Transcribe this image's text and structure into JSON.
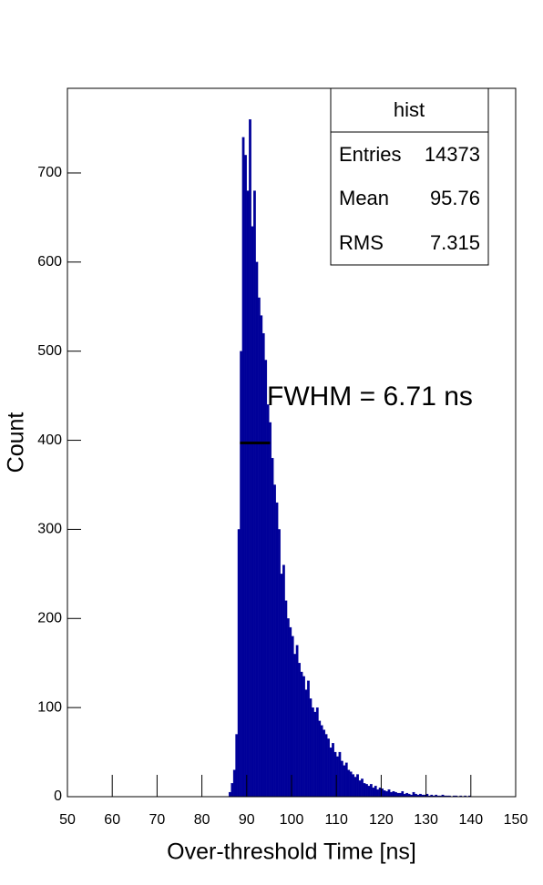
{
  "chart_data": {
    "type": "histogram",
    "bins": [
      50,
      50.5,
      51,
      51.5,
      52,
      52.5,
      53,
      53.5,
      54,
      54.5,
      55,
      55.5,
      56,
      56.5,
      57,
      57.5,
      58,
      58.5,
      59,
      59.5,
      60,
      60.5,
      61,
      61.5,
      62,
      62.5,
      63,
      63.5,
      64,
      64.5,
      65,
      65.5,
      66,
      66.5,
      67,
      67.5,
      68,
      68.5,
      69,
      69.5,
      70,
      70.5,
      71,
      71.5,
      72,
      72.5,
      73,
      73.5,
      74,
      74.5,
      75,
      75.5,
      76,
      76.5,
      77,
      77.5,
      78,
      78.5,
      79,
      79.5,
      80,
      80.5,
      81,
      81.5,
      82,
      82.5,
      83,
      83.5,
      84,
      84.5,
      85,
      85.5,
      86,
      86.5,
      87,
      87.5,
      88,
      88.5,
      89,
      89.5,
      90,
      90.5,
      91,
      91.5,
      92,
      92.5,
      93,
      93.5,
      94,
      94.5,
      95,
      95.5,
      96,
      96.5,
      97,
      97.5,
      98,
      98.5,
      99,
      99.5,
      100,
      100.5,
      101,
      101.5,
      102,
      102.5,
      103,
      103.5,
      104,
      104.5,
      105,
      105.5,
      106,
      106.5,
      107,
      107.5,
      108,
      108.5,
      109,
      109.5,
      110,
      110.5,
      111,
      111.5,
      112,
      112.5,
      113,
      113.5,
      114,
      114.5,
      115,
      115.5,
      116,
      116.5,
      117,
      117.5,
      118,
      118.5,
      119,
      119.5,
      120,
      120.5,
      121,
      121.5,
      122,
      122.5,
      123,
      123.5,
      124,
      124.5,
      125,
      125.5,
      126,
      126.5,
      127,
      127.5,
      128,
      128.5,
      129,
      129.5,
      130,
      130.5,
      131,
      131.5,
      132,
      132.5,
      133,
      133.5,
      134,
      134.5,
      135,
      135.5,
      136,
      136.5,
      137,
      137.5,
      138,
      138.5,
      139,
      139.5,
      140,
      140.5,
      141,
      141.5,
      142,
      142.5,
      143,
      143.5,
      144,
      144.5,
      145,
      145.5,
      146,
      146.5,
      147,
      147.5,
      148,
      148.5,
      149,
      149.5,
      150
    ],
    "values": [
      0,
      0,
      0,
      0,
      0,
      0,
      0,
      0,
      0,
      0,
      0,
      0,
      0,
      0,
      0,
      0,
      0,
      0,
      0,
      0,
      0,
      0,
      0,
      0,
      0,
      0,
      0,
      0,
      0,
      0,
      0,
      0,
      0,
      0,
      0,
      0,
      0,
      0,
      0,
      0,
      0,
      0,
      0,
      0,
      0,
      0,
      0,
      0,
      0,
      0,
      0,
      0,
      0,
      0,
      0,
      0,
      0,
      0,
      0,
      0,
      0,
      0,
      0,
      0,
      0,
      0,
      0,
      0,
      0,
      0,
      0,
      0,
      5,
      15,
      30,
      70,
      300,
      500,
      740,
      720,
      680,
      760,
      640,
      680,
      600,
      560,
      540,
      520,
      490,
      440,
      420,
      380,
      350,
      330,
      300,
      250,
      260,
      220,
      200,
      190,
      180,
      160,
      170,
      150,
      140,
      135,
      120,
      130,
      110,
      100,
      95,
      100,
      85,
      80,
      75,
      70,
      65,
      55,
      60,
      50,
      45,
      50,
      40,
      35,
      38,
      30,
      28,
      25,
      22,
      25,
      18,
      20,
      15,
      14,
      12,
      14,
      10,
      12,
      8,
      10,
      9,
      7,
      6,
      8,
      5,
      6,
      5,
      4,
      4,
      6,
      3,
      4,
      3,
      2,
      5,
      3,
      2,
      3,
      2,
      2,
      3,
      1,
      2,
      1,
      2,
      1,
      1,
      2,
      1,
      1,
      1,
      0,
      1,
      1,
      0,
      1,
      0,
      1,
      0,
      1,
      0,
      0,
      0,
      0,
      0,
      0,
      0,
      0,
      0,
      0,
      0,
      0,
      0,
      0,
      0,
      0,
      0,
      0,
      0,
      0
    ],
    "color": "#000099",
    "x_label": "Over-threshold Time [ns]",
    "y_label": "Count",
    "xlim": [
      50,
      150
    ],
    "xticks": [
      50,
      60,
      70,
      80,
      90,
      100,
      110,
      120,
      130,
      140,
      150
    ],
    "ylim": [
      0,
      795
    ],
    "yticks": [
      0,
      100,
      200,
      300,
      400,
      500,
      600,
      700
    ],
    "stats": {
      "title": "hist",
      "rows": [
        [
          "Entries",
          14373
        ],
        [
          "Mean",
          95.76
        ],
        [
          "RMS",
          7.315
        ]
      ]
    },
    "annotation": {
      "text": "FWHM = 6.71 ns",
      "x": [
        88.5,
        95.2
      ],
      "y": 397
    }
  }
}
